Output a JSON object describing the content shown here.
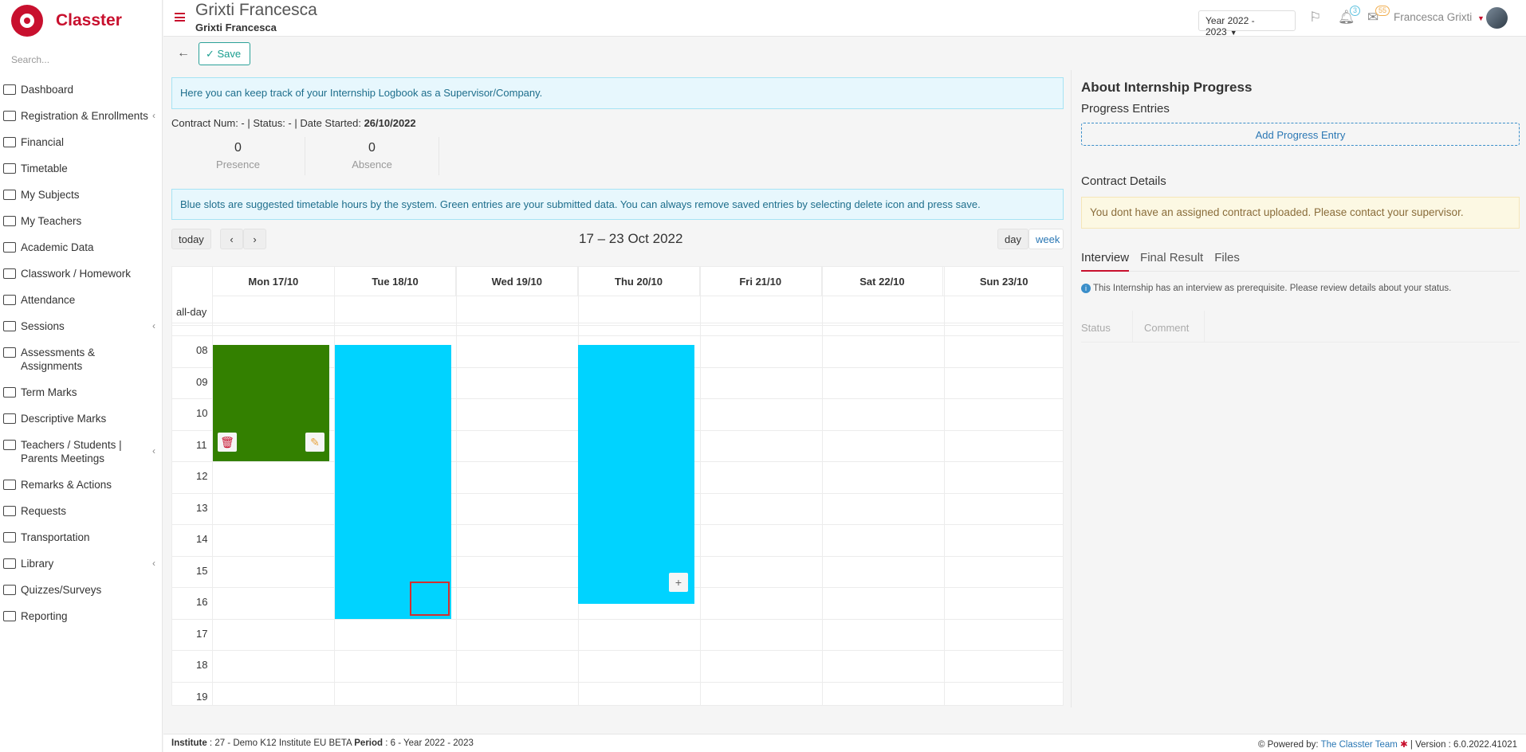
{
  "brand": {
    "name": "Classter"
  },
  "search": {
    "placeholder": "Search..."
  },
  "sidebar": {
    "items": [
      {
        "label": "Dashboard",
        "icon": "laptop-icon"
      },
      {
        "label": "Registration & Enrollments",
        "icon": "bank-icon",
        "expandable": true
      },
      {
        "label": "Financial",
        "icon": "coins-icon"
      },
      {
        "label": "Timetable",
        "icon": "calendar-icon"
      },
      {
        "label": "My Subjects",
        "icon": "book-icon"
      },
      {
        "label": "My Teachers",
        "icon": "users-icon"
      },
      {
        "label": "Academic Data",
        "icon": "id-card-icon"
      },
      {
        "label": "Classwork / Homework",
        "icon": "list-icon"
      },
      {
        "label": "Attendance",
        "icon": "user-check-icon"
      },
      {
        "label": "Sessions",
        "icon": "users-icon",
        "expandable": true
      },
      {
        "label": "Assessments & Assignments",
        "icon": "edit-icon"
      },
      {
        "label": "Term Marks",
        "icon": "table-icon"
      },
      {
        "label": "Descriptive Marks",
        "icon": "comment-icon"
      },
      {
        "label": "Teachers / Students | Parents Meetings",
        "icon": "users-icon",
        "expandable": true
      },
      {
        "label": "Remarks & Actions",
        "icon": "shuffle-icon"
      },
      {
        "label": "Requests",
        "icon": "file-icon"
      },
      {
        "label": "Transportation",
        "icon": "bus-icon"
      },
      {
        "label": "Library",
        "icon": "library-icon",
        "expandable": true
      },
      {
        "label": "Quizzes/Surveys",
        "icon": "list-alt-icon"
      },
      {
        "label": "Reporting",
        "icon": "print-icon"
      }
    ]
  },
  "header": {
    "title": "Grixti Francesca",
    "subtitle": "Grixti Francesca",
    "year": "Year 2022 - 2023",
    "notifications_count": "3",
    "messages_count": "55",
    "user_name": "Francesca Grixti"
  },
  "toolbar": {
    "save_label": "Save"
  },
  "main": {
    "intro": "Here you can keep track of your Internship Logbook as a Supervisor/Company.",
    "contract_prefix": "Contract Num: -   | Status: - | Date Started:",
    "date_started": "26/10/2022",
    "presence_count": "0",
    "presence_label": "Presence",
    "absence_count": "0",
    "absence_label": "Absence",
    "slots_info": "Blue slots are suggested timetable hours by the system. Green entries are your submitted data. You can always remove saved entries by selecting delete icon and press save."
  },
  "calendar": {
    "today_label": "today",
    "prev_label": "‹",
    "next_label": "›",
    "range_title": "17 – 23 Oct 2022",
    "day_label": "day",
    "week_label": "week",
    "all_day_label": "all-day",
    "days": [
      "Mon 17/10",
      "Tue 18/10",
      "Wed 19/10",
      "Thu 20/10",
      "Fri 21/10",
      "Sat 22/10",
      "Sun 23/10"
    ],
    "hours": [
      "08",
      "09",
      "10",
      "11",
      "12",
      "13",
      "14",
      "15",
      "16",
      "17",
      "18",
      "19"
    ],
    "colors": {
      "submitted": "#338000",
      "suggested": "#00d3ff"
    }
  },
  "right_panel": {
    "title": "About Internship Progress",
    "progress_entries": "Progress Entries",
    "add_entry": "Add Progress Entry",
    "contract_details": "Contract Details",
    "contract_warning": "You dont have an assigned contract uploaded. Please contact your supervisor.",
    "tabs": [
      "Interview",
      "Final Result",
      "Files"
    ],
    "interview_note": "This Internship has an interview as prerequisite. Please review details about your status.",
    "table_headers": [
      "Status",
      "Comment"
    ]
  },
  "footer": {
    "institute_label": "Institute",
    "institute_value": " : 27 - Demo K12 Institute EU BETA ",
    "period_label": "Period",
    "period_value": " : 6 - Year 2022 - 2023",
    "powered_by": "Powered by:",
    "team_link": "The Classter Team",
    "version": "| Version : 6.0.2022.41021"
  }
}
